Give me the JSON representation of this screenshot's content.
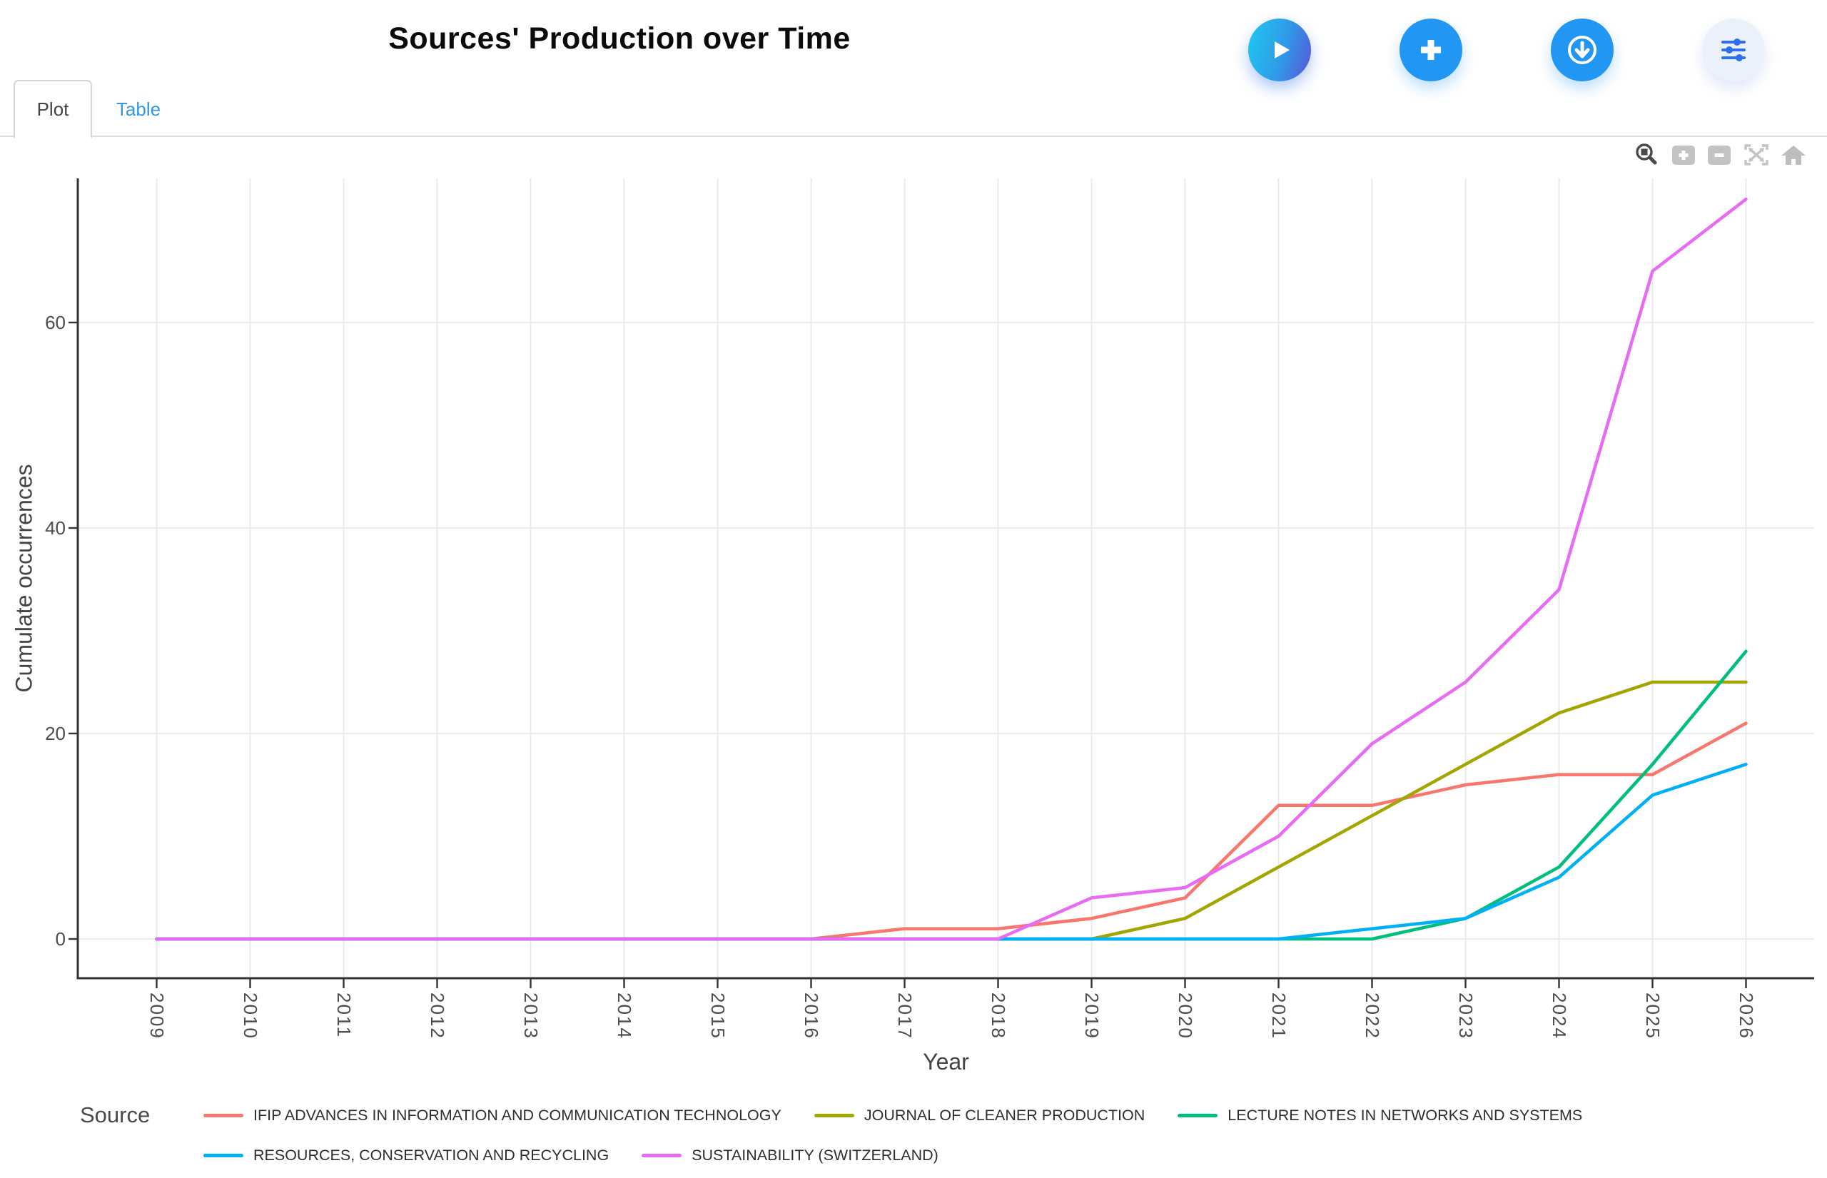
{
  "header": {
    "title": "Sources' Production over Time",
    "buttons": [
      {
        "name": "play",
        "icon": "play-icon"
      },
      {
        "name": "add",
        "icon": "plus-icon"
      },
      {
        "name": "download",
        "icon": "download-circle-icon"
      },
      {
        "name": "settings",
        "icon": "sliders-icon"
      }
    ]
  },
  "tabs": [
    {
      "label": "Plot",
      "active": true
    },
    {
      "label": "Table",
      "active": false
    }
  ],
  "modebar_icons": [
    "box-zoom-icon",
    "zoom-in-icon",
    "zoom-out-icon",
    "autoscale-icon",
    "reset-axes-icon"
  ],
  "chart_data": {
    "type": "line",
    "title": "",
    "xlabel": "Year",
    "ylabel": "Cumulate occurrences",
    "legend_title": "Source",
    "legend_position": "bottom",
    "grid": true,
    "x": [
      2009,
      2010,
      2011,
      2012,
      2013,
      2014,
      2015,
      2016,
      2017,
      2018,
      2019,
      2020,
      2021,
      2022,
      2023,
      2024,
      2025,
      2026
    ],
    "yticks": [
      0,
      20,
      40,
      60
    ],
    "xlim": [
      2009,
      2026
    ],
    "ylim": [
      0,
      72
    ],
    "series": [
      {
        "name": "IFIP ADVANCES IN INFORMATION AND COMMUNICATION TECHNOLOGY",
        "color": "#F8766D",
        "values": [
          0,
          0,
          0,
          0,
          0,
          0,
          0,
          0,
          1,
          1,
          2,
          4,
          13,
          13,
          15,
          16,
          16,
          21
        ]
      },
      {
        "name": "JOURNAL OF CLEANER PRODUCTION",
        "color": "#A3A500",
        "values": [
          0,
          0,
          0,
          0,
          0,
          0,
          0,
          0,
          0,
          0,
          0,
          2,
          7,
          12,
          17,
          22,
          25,
          25
        ]
      },
      {
        "name": "LECTURE NOTES IN NETWORKS AND SYSTEMS",
        "color": "#00BF7D",
        "values": [
          0,
          0,
          0,
          0,
          0,
          0,
          0,
          0,
          0,
          0,
          0,
          0,
          0,
          0,
          2,
          7,
          17,
          28
        ]
      },
      {
        "name": "RESOURCES, CONSERVATION AND RECYCLING",
        "color": "#00B0F6",
        "values": [
          0,
          0,
          0,
          0,
          0,
          0,
          0,
          0,
          0,
          0,
          0,
          0,
          0,
          1,
          2,
          6,
          14,
          17
        ]
      },
      {
        "name": "SUSTAINABILITY (SWITZERLAND)",
        "color": "#E76BF3",
        "values": [
          0,
          0,
          0,
          0,
          0,
          0,
          0,
          0,
          0,
          0,
          4,
          5,
          10,
          19,
          25,
          34,
          65,
          72
        ]
      }
    ],
    "axis_color": "#333333",
    "gridline_color": "#e9e9e9",
    "tick_label_color": "#4d4d4d"
  }
}
